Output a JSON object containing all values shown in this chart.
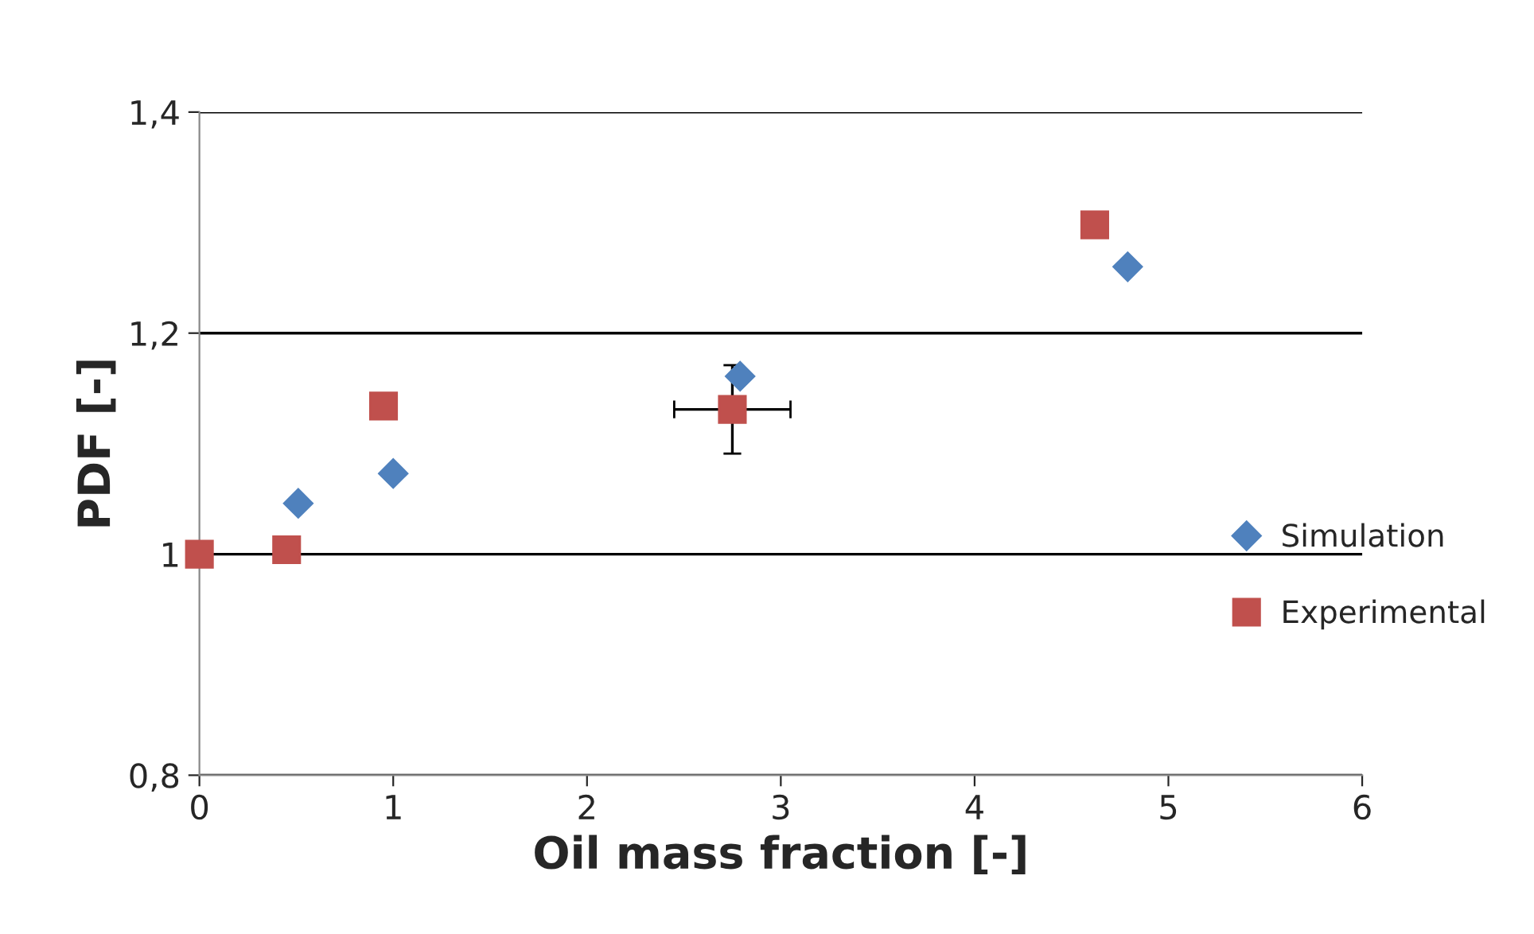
{
  "chart_data": {
    "type": "scatter",
    "xlabel": "Oil mass fraction [-]",
    "ylabel": "PDF [-]",
    "xlim": [
      0,
      6
    ],
    "xticks": [
      0,
      1,
      2,
      3,
      4,
      5,
      6
    ],
    "ylim": [
      0.8,
      1.4
    ],
    "yticks": [
      {
        "value": 0.8,
        "label": "0,8"
      },
      1,
      {
        "value": 1.2,
        "label": "1,2"
      },
      {
        "value": 1.4,
        "label": "1,4"
      }
    ],
    "grid": "y",
    "legend": "right",
    "series": [
      {
        "name": "Simulation",
        "color": "#4f81bd",
        "marker": "diamond",
        "x": [
          0.51,
          1.0,
          2.79,
          4.79
        ],
        "values": [
          1.046,
          1.073,
          1.161,
          1.26
        ]
      },
      {
        "name": "Experimental",
        "color": "#c0504d",
        "marker": "square",
        "x": [
          0,
          0.45,
          0.95,
          2.75,
          4.62
        ],
        "values": [
          1.0,
          1.004,
          1.134,
          1.131,
          1.298
        ],
        "errors": [
          null,
          null,
          null,
          0.04,
          null
        ],
        "xerrors": [
          null,
          null,
          null,
          0.3,
          null
        ]
      }
    ]
  }
}
